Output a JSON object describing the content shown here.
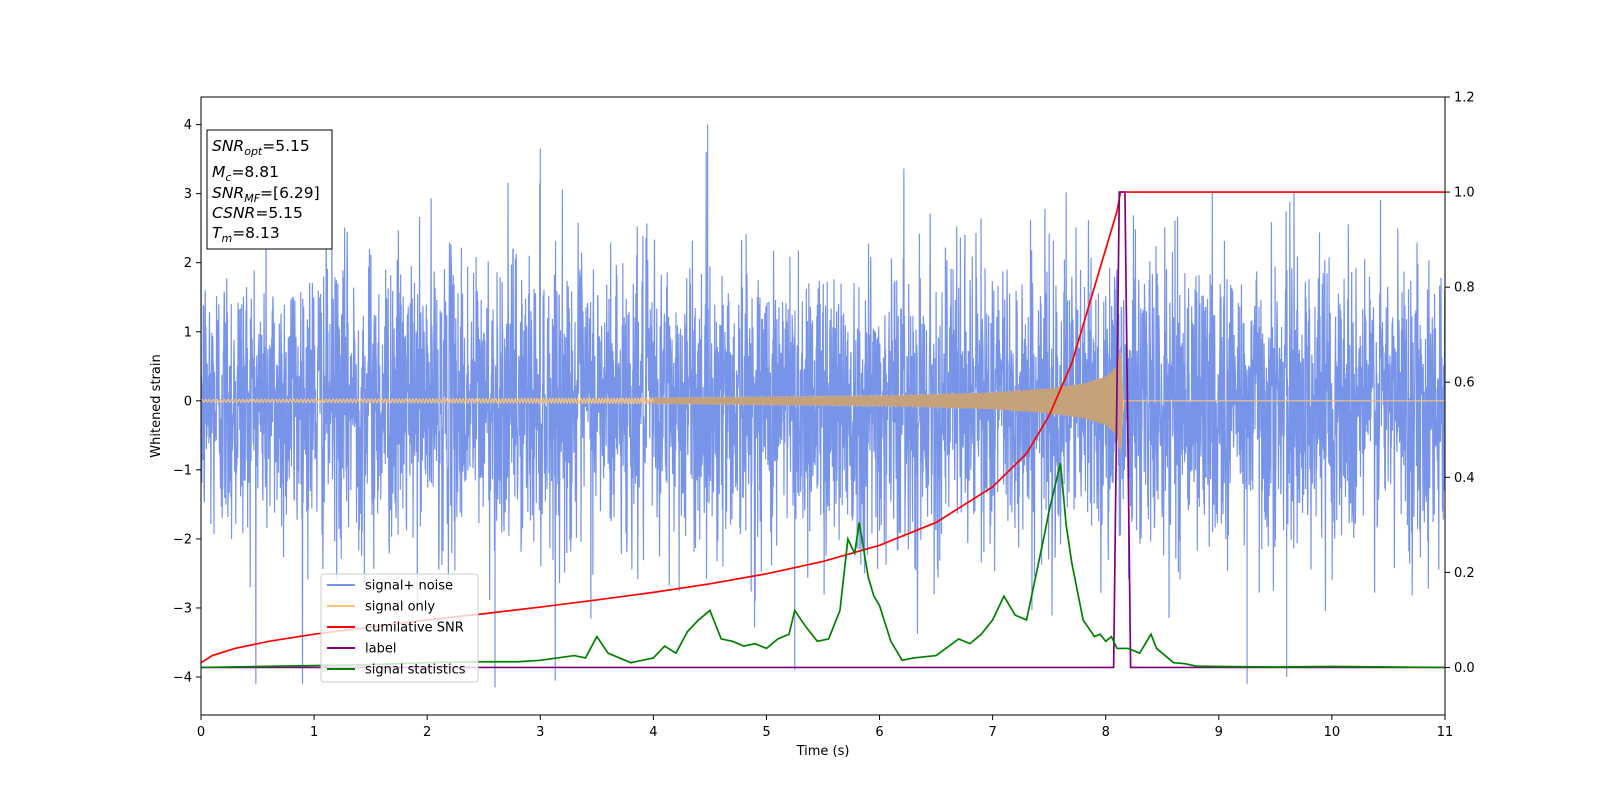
{
  "chart_data": {
    "type": "line",
    "xlabel": "Time (s)",
    "ylabel": "Whitened strain",
    "xlim": [
      0,
      11
    ],
    "ylim": [
      -4.55,
      4.4
    ],
    "y2lim": [
      -0.1,
      1.2
    ],
    "xticks": [
      0,
      1,
      2,
      3,
      4,
      5,
      6,
      7,
      8,
      9,
      10,
      11
    ],
    "yticks": [
      -4,
      -3,
      -2,
      -1,
      0,
      1,
      2,
      3,
      4
    ],
    "y2ticks": [
      "0.0",
      "0.2",
      "0.4",
      "0.6",
      "0.8",
      "1.0",
      "1.2"
    ],
    "grid": false,
    "legend_position": "lower-left",
    "annotation": {
      "lines": [
        {
          "main": "SNR",
          "sub": "opt",
          "value": "=5.15"
        },
        {
          "main": "M",
          "sub": "c",
          "value": "=8.81"
        },
        {
          "main": "SNR",
          "sub": "MF",
          "value": "=[6.29]"
        },
        {
          "main": "CSNR",
          "sub": "",
          "value": "=5.15"
        },
        {
          "main": "T",
          "sub": "m",
          "value": "=8.13"
        }
      ]
    },
    "series": [
      {
        "name": "signal+ noise",
        "color": "#7894e8",
        "axis": "left",
        "style": "noise",
        "description": "whitened strain data, roughly Gaussian noise with std ~1, spanning about -4.2 to 4.0",
        "peaks": [
          [
            4.48,
            4.0
          ],
          [
            2.6,
            -4.15
          ],
          [
            9.25,
            -4.1
          ],
          [
            9.6,
            -4.0
          ],
          [
            5.25,
            -3.9
          ],
          [
            3.0,
            3.65
          ]
        ]
      },
      {
        "name": "signal only",
        "color": "#f6c47c",
        "axis": "left",
        "style": "chirp",
        "t_merge": 8.13,
        "envelope": [
          [
            0,
            0.02
          ],
          [
            4,
            0.04
          ],
          [
            6,
            0.07
          ],
          [
            7,
            0.12
          ],
          [
            7.5,
            0.18
          ],
          [
            7.8,
            0.25
          ],
          [
            8.0,
            0.35
          ],
          [
            8.1,
            0.5
          ],
          [
            8.13,
            0.8
          ],
          [
            8.16,
            0.0
          ]
        ]
      },
      {
        "name": "cumilative SNR",
        "color": "#ff0000",
        "axis": "right",
        "x": [
          0,
          0.1,
          0.3,
          0.6,
          1.0,
          1.5,
          2.0,
          2.5,
          3.0,
          3.5,
          4.0,
          4.5,
          5.0,
          5.5,
          6.0,
          6.5,
          7.0,
          7.3,
          7.5,
          7.7,
          7.9,
          8.0,
          8.1,
          8.13,
          8.14,
          11.0
        ],
        "values": [
          0.01,
          0.025,
          0.04,
          0.055,
          0.07,
          0.085,
          0.1,
          0.113,
          0.127,
          0.142,
          0.158,
          0.176,
          0.197,
          0.223,
          0.257,
          0.305,
          0.38,
          0.45,
          0.53,
          0.64,
          0.8,
          0.88,
          0.96,
          1.0,
          1.0,
          1.0
        ]
      },
      {
        "name": "label",
        "color": "#800080",
        "axis": "right",
        "x": [
          0,
          8.07,
          8.12,
          8.17,
          8.22,
          11.0
        ],
        "values": [
          0,
          0,
          1,
          1,
          0,
          0
        ]
      },
      {
        "name": "signal statistics",
        "color": "#008000",
        "axis": "right",
        "x": [
          0,
          0.5,
          1.0,
          1.5,
          2.0,
          2.5,
          2.8,
          3.0,
          3.3,
          3.4,
          3.5,
          3.6,
          3.8,
          4.0,
          4.1,
          4.2,
          4.3,
          4.4,
          4.5,
          4.6,
          4.7,
          4.8,
          4.9,
          5.0,
          5.1,
          5.2,
          5.25,
          5.35,
          5.45,
          5.55,
          5.65,
          5.72,
          5.78,
          5.82,
          5.9,
          5.95,
          6.0,
          6.1,
          6.2,
          6.3,
          6.5,
          6.7,
          6.8,
          6.9,
          7.0,
          7.1,
          7.2,
          7.3,
          7.45,
          7.5,
          7.55,
          7.6,
          7.65,
          7.7,
          7.8,
          7.9,
          7.95,
          8.0,
          8.05,
          8.1,
          8.2,
          8.3,
          8.4,
          8.45,
          8.5,
          8.6,
          8.7,
          8.8,
          9.0,
          9.5,
          10.0,
          10.5,
          11.0
        ],
        "values": [
          0.0,
          0.002,
          0.004,
          0.006,
          0.01,
          0.012,
          0.012,
          0.015,
          0.025,
          0.02,
          0.065,
          0.03,
          0.01,
          0.02,
          0.045,
          0.03,
          0.075,
          0.1,
          0.12,
          0.06,
          0.055,
          0.045,
          0.05,
          0.04,
          0.06,
          0.07,
          0.12,
          0.085,
          0.055,
          0.06,
          0.12,
          0.27,
          0.24,
          0.305,
          0.19,
          0.15,
          0.13,
          0.055,
          0.015,
          0.02,
          0.025,
          0.06,
          0.05,
          0.07,
          0.1,
          0.15,
          0.11,
          0.1,
          0.27,
          0.33,
          0.38,
          0.43,
          0.3,
          0.22,
          0.1,
          0.065,
          0.07,
          0.055,
          0.065,
          0.04,
          0.04,
          0.03,
          0.07,
          0.04,
          0.03,
          0.01,
          0.008,
          0.003,
          0.002,
          0.001,
          0.002,
          0.001,
          0.0
        ]
      }
    ]
  }
}
